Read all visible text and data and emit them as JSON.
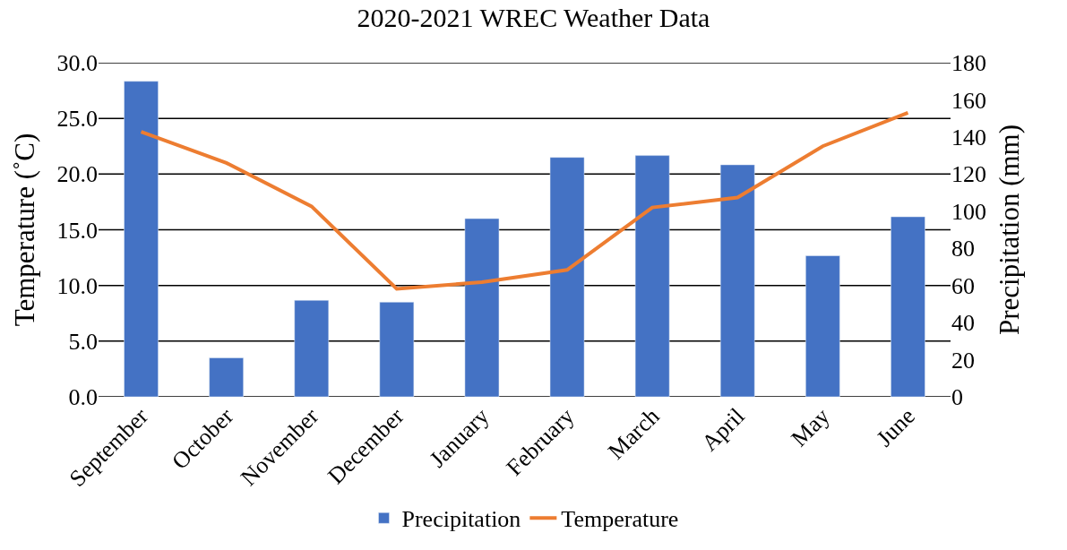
{
  "chart_data": {
    "type": "bar",
    "title": "2020-2021 WREC Weather Data",
    "ylabel": "Temperature (˚C)",
    "y2label": "Precipitation (mm)",
    "categories": [
      "September",
      "October",
      "November",
      "December",
      "January",
      "February",
      "March",
      "April",
      "May",
      "June"
    ],
    "series": [
      {
        "name": "Precipitation",
        "axis": "y2",
        "color": "#4472c4",
        "values": [
          170,
          21,
          52,
          51,
          96,
          129,
          130,
          125,
          76,
          97
        ]
      },
      {
        "name": "Temperature",
        "type": "line",
        "axis": "y",
        "color": "#ed7d31",
        "marker": "none",
        "line_style": "solid",
        "values": [
          23.8,
          21.0,
          17.1,
          9.7,
          10.3,
          11.4,
          17.0,
          17.9,
          22.5,
          25.5
        ]
      }
    ],
    "ylim": [
      0,
      30
    ],
    "yticks": [
      {
        "value": 0,
        "label": "0.0"
      },
      {
        "value": 5,
        "label": "5.0"
      },
      {
        "value": 10,
        "label": "10.0"
      },
      {
        "value": 15,
        "label": "15.0"
      },
      {
        "value": 20,
        "label": "20.0"
      },
      {
        "value": 25,
        "label": "25.0"
      },
      {
        "value": 30,
        "label": "30.0"
      }
    ],
    "y2lim": [
      0,
      180
    ],
    "y2ticks": [
      0,
      20,
      40,
      60,
      80,
      100,
      120,
      140,
      160,
      180
    ],
    "grid": "y",
    "legend": "bottom"
  }
}
